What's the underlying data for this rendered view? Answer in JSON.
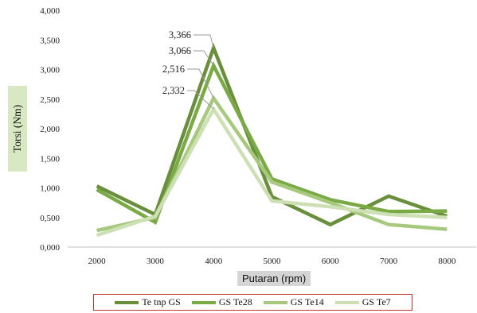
{
  "chart_data": {
    "type": "line",
    "title": "",
    "xlabel": "Putaran (rpm)",
    "ylabel": "Torsi (Nm)",
    "x": [
      2000,
      3000,
      4000,
      5000,
      6000,
      7000,
      8000
    ],
    "ylim": [
      0,
      4
    ],
    "yticks": [
      "0,000",
      "0,500",
      "1,000",
      "1,500",
      "2,000",
      "2,500",
      "3,000",
      "3,500",
      "4,000"
    ],
    "grid": false,
    "legend_position": "bottom",
    "series": [
      {
        "name": "Te tnp GS",
        "color": "#6a8f3c",
        "values": [
          1.03,
          0.55,
          3.366,
          0.85,
          0.38,
          0.86,
          0.52
        ]
      },
      {
        "name": "GS Te28",
        "color": "#7aaa45",
        "values": [
          0.97,
          0.42,
          3.066,
          1.15,
          0.8,
          0.6,
          0.61
        ]
      },
      {
        "name": "GS Te14",
        "color": "#a6c97e",
        "values": [
          0.28,
          0.5,
          2.516,
          1.1,
          0.75,
          0.38,
          0.3
        ]
      },
      {
        "name": "GS Te7",
        "color": "#cde0b4",
        "values": [
          0.2,
          0.52,
          2.332,
          0.78,
          0.68,
          0.55,
          0.5
        ]
      }
    ],
    "annotations": [
      "3,366",
      "3,066",
      "2,516",
      "2,332"
    ]
  }
}
